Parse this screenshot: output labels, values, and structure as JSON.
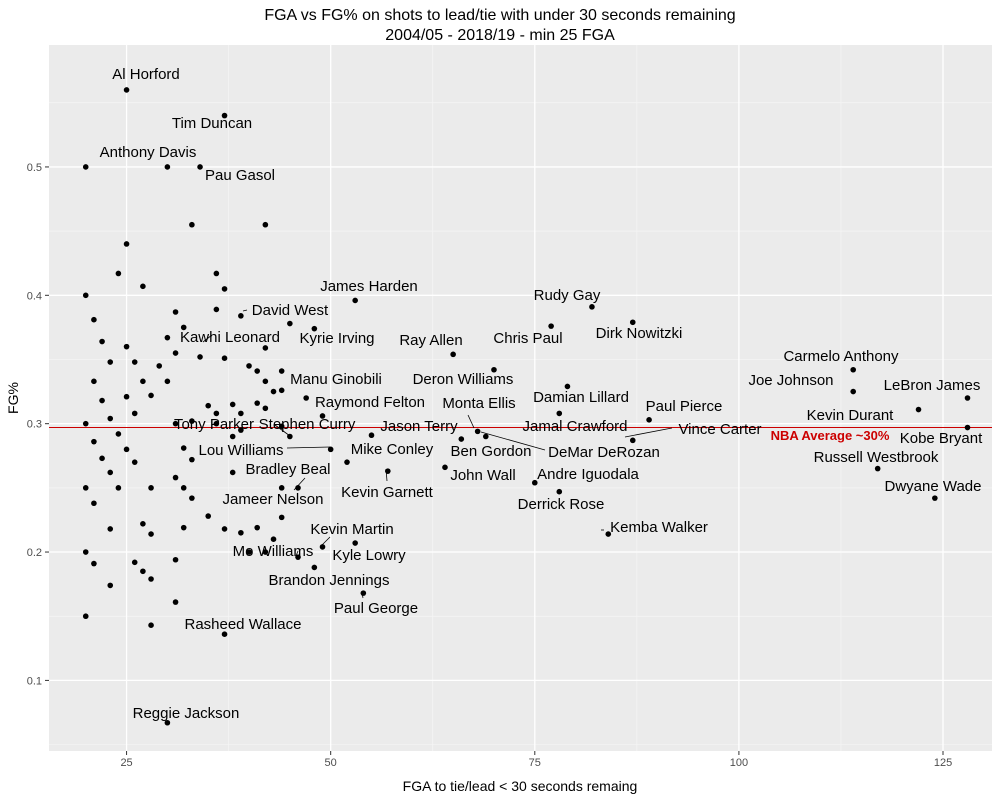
{
  "chart_data": {
    "type": "scatter",
    "title": "FGA vs FG% on shots to lead/tie with under 30 seconds remaining",
    "subtitle": "2004/05 - 2018/19 - min 25 FGA",
    "xlabel": "FGA to tie/lead < 30 seconds remaing",
    "ylabel": "FG%",
    "xlim": [
      15.5,
      131
    ],
    "ylim": [
      0.045,
      0.595
    ],
    "xticks": [
      25,
      50,
      75,
      100,
      125
    ],
    "xtick_labels": [
      "25",
      "50",
      "75",
      "100",
      "125"
    ],
    "yticks": [
      0.1,
      0.2,
      0.3,
      0.4,
      0.5
    ],
    "ytick_labels": [
      "0.1",
      "0.2",
      "0.3",
      "0.4",
      "0.5"
    ],
    "grid": true,
    "reference_line": {
      "y": 0.297,
      "label": "NBA Average ~30%",
      "color": "#cc0000"
    },
    "labeled_points": [
      {
        "name": "Al Horford",
        "x": 25,
        "y": 0.56
      },
      {
        "name": "Tim Duncan",
        "x": 37,
        "y": 0.54
      },
      {
        "name": "Anthony Davis",
        "x": 30,
        "y": 0.5
      },
      {
        "name": "Pau Gasol",
        "x": 34,
        "y": 0.5
      },
      {
        "name": "James Harden",
        "x": 53,
        "y": 0.396
      },
      {
        "name": "David West",
        "x": 39,
        "y": 0.384
      },
      {
        "name": "Kyrie Irving",
        "x": 48,
        "y": 0.374
      },
      {
        "name": "Kawhi Leonard",
        "x": 34,
        "y": 0.352
      },
      {
        "name": "Rudy Gay",
        "x": 82,
        "y": 0.391
      },
      {
        "name": "Chris Paul",
        "x": 77,
        "y": 0.376
      },
      {
        "name": "Dirk Nowitzki",
        "x": 87,
        "y": 0.379
      },
      {
        "name": "Ray Allen",
        "x": 65,
        "y": 0.354
      },
      {
        "name": "Deron Williams",
        "x": 70,
        "y": 0.342
      },
      {
        "name": "Manu Ginobili",
        "x": 44,
        "y": 0.326
      },
      {
        "name": "Raymond Felton",
        "x": 49,
        "y": 0.306
      },
      {
        "name": "Damian Lillard",
        "x": 79,
        "y": 0.329
      },
      {
        "name": "Monta Ellis",
        "x": 69,
        "y": 0.29
      },
      {
        "name": "Paul Pierce",
        "x": 89,
        "y": 0.303
      },
      {
        "name": "Carmelo Anthony",
        "x": 114,
        "y": 0.342
      },
      {
        "name": "Joe Johnson",
        "x": 114,
        "y": 0.325
      },
      {
        "name": "LeBron James",
        "x": 128,
        "y": 0.32
      },
      {
        "name": "Kevin Durant",
        "x": 122,
        "y": 0.311
      },
      {
        "name": "Kobe Bryant",
        "x": 128,
        "y": 0.297
      },
      {
        "name": "Russell Westbrook",
        "x": 117,
        "y": 0.265
      },
      {
        "name": "Dwyane Wade",
        "x": 124,
        "y": 0.242
      },
      {
        "name": "Tony Parker",
        "x": 38,
        "y": 0.29
      },
      {
        "name": "Stephen Curry",
        "x": 45,
        "y": 0.29
      },
      {
        "name": "Jason Terry",
        "x": 55,
        "y": 0.291
      },
      {
        "name": "Jamal Crawford",
        "x": 78,
        "y": 0.308
      },
      {
        "name": "Vince Carter",
        "x": 87,
        "y": 0.287
      },
      {
        "name": "Lou Williams",
        "x": 50,
        "y": 0.28
      },
      {
        "name": "Mike Conley",
        "x": 52,
        "y": 0.27
      },
      {
        "name": "Ben Gordon",
        "x": 66,
        "y": 0.288
      },
      {
        "name": "DeMar DeRozan",
        "x": 68,
        "y": 0.294
      },
      {
        "name": "Bradley Beal",
        "x": 44,
        "y": 0.25
      },
      {
        "name": "Kevin Garnett",
        "x": 57,
        "y": 0.263
      },
      {
        "name": "John Wall",
        "x": 64,
        "y": 0.266
      },
      {
        "name": "Andre Iguodala",
        "x": 75,
        "y": 0.254
      },
      {
        "name": "Derrick Rose",
        "x": 78,
        "y": 0.247
      },
      {
        "name": "Jameer Nelson",
        "x": 44,
        "y": 0.227
      },
      {
        "name": "Kemba Walker",
        "x": 84,
        "y": 0.214
      },
      {
        "name": "Kevin Martin",
        "x": 49,
        "y": 0.204
      },
      {
        "name": "Mo Williams",
        "x": 46,
        "y": 0.196
      },
      {
        "name": "Kyle Lowry",
        "x": 53,
        "y": 0.207
      },
      {
        "name": "Brandon Jennings",
        "x": 48,
        "y": 0.188
      },
      {
        "name": "Paul George",
        "x": 54,
        "y": 0.168
      },
      {
        "name": "Rasheed Wallace",
        "x": 37,
        "y": 0.136
      },
      {
        "name": "Reggie Jackson",
        "x": 30,
        "y": 0.067
      }
    ],
    "unlabeled_points": [
      [
        20,
        0.5
      ],
      [
        25,
        0.44
      ],
      [
        24,
        0.417
      ],
      [
        27,
        0.407
      ],
      [
        20,
        0.4
      ],
      [
        21,
        0.381
      ],
      [
        22,
        0.364
      ],
      [
        23,
        0.348
      ],
      [
        21,
        0.333
      ],
      [
        22,
        0.318
      ],
      [
        23,
        0.304
      ],
      [
        20,
        0.3
      ],
      [
        24,
        0.292
      ],
      [
        21,
        0.286
      ],
      [
        22,
        0.273
      ],
      [
        23,
        0.262
      ],
      [
        20,
        0.25
      ],
      [
        21,
        0.238
      ],
      [
        23,
        0.218
      ],
      [
        20,
        0.2
      ],
      [
        21,
        0.191
      ],
      [
        23,
        0.174
      ],
      [
        20,
        0.15
      ],
      [
        25,
        0.36
      ],
      [
        26,
        0.348
      ],
      [
        25,
        0.321
      ],
      [
        26,
        0.308
      ],
      [
        25,
        0.28
      ],
      [
        26,
        0.27
      ],
      [
        24,
        0.25
      ],
      [
        27,
        0.222
      ],
      [
        28,
        0.214
      ],
      [
        26,
        0.192
      ],
      [
        27,
        0.185
      ],
      [
        28,
        0.179
      ],
      [
        28,
        0.143
      ],
      [
        27,
        0.333
      ],
      [
        28,
        0.322
      ],
      [
        29,
        0.345
      ],
      [
        30,
        0.333
      ],
      [
        30,
        0.367
      ],
      [
        31,
        0.355
      ],
      [
        31,
        0.387
      ],
      [
        32,
        0.375
      ],
      [
        33,
        0.455
      ],
      [
        36,
        0.417
      ],
      [
        37,
        0.405
      ],
      [
        36,
        0.389
      ],
      [
        37,
        0.351
      ],
      [
        31,
        0.3
      ],
      [
        33,
        0.302
      ],
      [
        32,
        0.281
      ],
      [
        33,
        0.272
      ],
      [
        31,
        0.258
      ],
      [
        32,
        0.25
      ],
      [
        33,
        0.242
      ],
      [
        28,
        0.25
      ],
      [
        32,
        0.219
      ],
      [
        31,
        0.194
      ],
      [
        31,
        0.161
      ],
      [
        35,
        0.314
      ],
      [
        36,
        0.308
      ],
      [
        35,
        0.228
      ],
      [
        37,
        0.218
      ],
      [
        39,
        0.215
      ],
      [
        38,
        0.262
      ],
      [
        38,
        0.315
      ],
      [
        39,
        0.308
      ],
      [
        39,
        0.295
      ],
      [
        40,
        0.345
      ],
      [
        41,
        0.341
      ],
      [
        42,
        0.359
      ],
      [
        42,
        0.333
      ],
      [
        41,
        0.316
      ],
      [
        42,
        0.312
      ],
      [
        43,
        0.325
      ],
      [
        44,
        0.341
      ],
      [
        42,
        0.455
      ],
      [
        41,
        0.219
      ],
      [
        42,
        0.2
      ],
      [
        43,
        0.21
      ],
      [
        40,
        0.2
      ],
      [
        44,
        0.298
      ],
      [
        45,
        0.378
      ],
      [
        47,
        0.32
      ],
      [
        46,
        0.25
      ],
      [
        36,
        0.3
      ]
    ]
  }
}
